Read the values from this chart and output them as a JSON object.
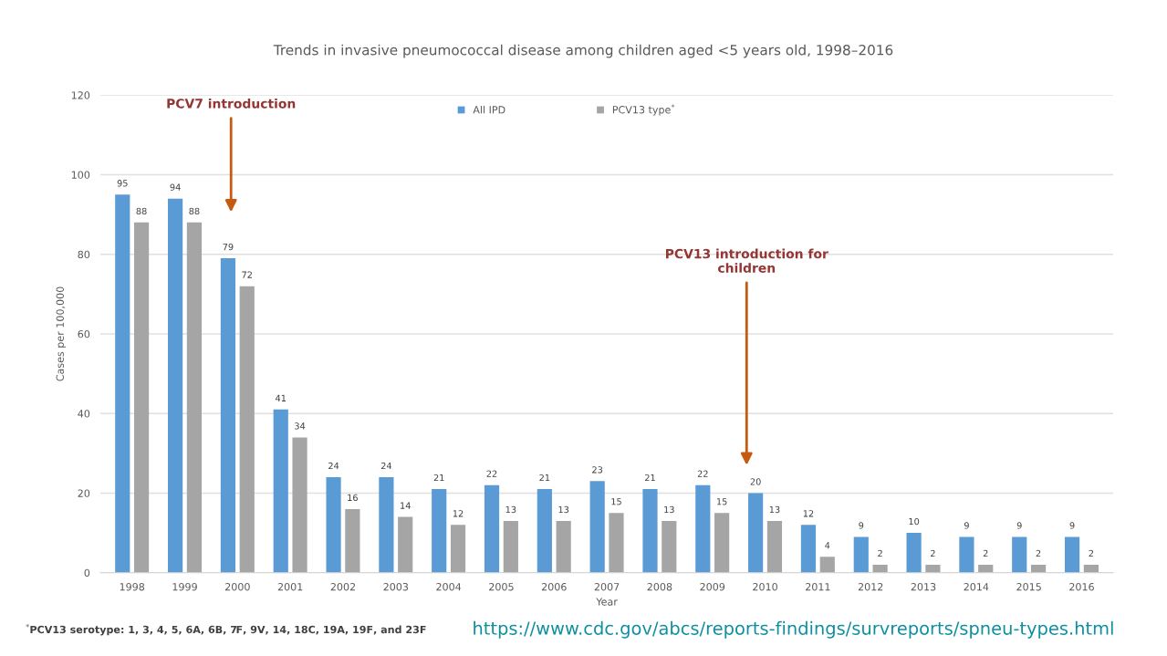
{
  "chart_data": {
    "type": "bar",
    "title": "Trends in invasive pneumococcal disease among children aged <5 years old, 1998–2016",
    "xlabel": "Year",
    "ylabel": "Cases per 100,000",
    "categories": [
      "1998",
      "1999",
      "2000",
      "2001",
      "2002",
      "2003",
      "2004",
      "2005",
      "2006",
      "2007",
      "2008",
      "2009",
      "2010",
      "2011",
      "2012",
      "2013",
      "2014",
      "2015",
      "2016"
    ],
    "series": [
      {
        "name": "All IPD",
        "color": "#5b9bd5",
        "values": [
          95,
          94,
          79,
          41,
          24,
          24,
          21,
          22,
          21,
          23,
          21,
          22,
          20,
          12,
          9,
          10,
          9,
          9,
          9
        ]
      },
      {
        "name": "PCV13 type$^{*}$",
        "color": "#a5a5a5",
        "values": [
          88,
          88,
          72,
          34,
          16,
          14,
          12,
          13,
          13,
          15,
          13,
          15,
          13,
          4,
          2,
          2,
          2,
          2,
          2
        ]
      }
    ],
    "ylim": [
      0,
      120
    ],
    "yticks": [
      0,
      20,
      40,
      60,
      80,
      100,
      120
    ],
    "grid": "y",
    "legend": "top",
    "data_labels": true,
    "annotations": [
      "PCV7 introduction",
      "PCV13 introduction for\nchildren",
      "$^{*}$PCV13 serotype: 1, 3, 4, 5, 6A, 6B, 7F, 9V, 14, 18C, 19A, 19F, and 23F",
      "https://www.cdc.gov/abcs/reports-findings/survreports/spneu-types.html"
    ]
  }
}
